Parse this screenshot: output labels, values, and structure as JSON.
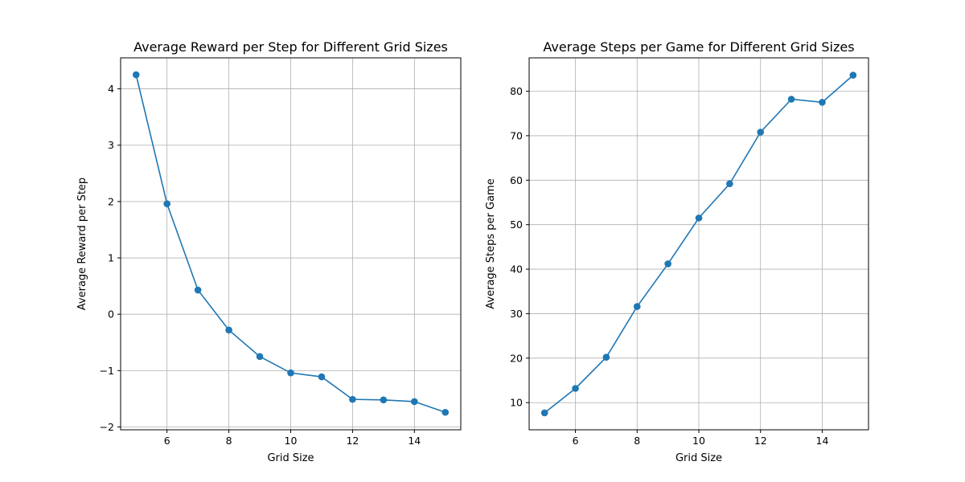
{
  "chart_data": [
    {
      "type": "line",
      "title": "Average Reward per Step for Different Grid Sizes",
      "xlabel": "Grid Size",
      "ylabel": "Average Reward per Step",
      "x": [
        5,
        6,
        7,
        8,
        9,
        10,
        11,
        12,
        13,
        14,
        15
      ],
      "series": [
        {
          "values": [
            4.25,
            1.96,
            0.43,
            -0.28,
            -0.75,
            -1.04,
            -1.11,
            -1.51,
            -1.52,
            -1.55,
            -1.74
          ]
        }
      ],
      "xlim": [
        4.5,
        15.5
      ],
      "ylim": [
        -2.05,
        4.55
      ],
      "xticks": [
        6,
        8,
        10,
        12,
        14
      ],
      "xtick_labels": [
        "6",
        "8",
        "10",
        "12",
        "14"
      ],
      "yticks": [
        -2,
        -1,
        0,
        1,
        2,
        3,
        4
      ],
      "ytick_labels": [
        "−2",
        "−1",
        "0",
        "1",
        "2",
        "3",
        "4"
      ],
      "grid": true,
      "color": "#1f77b4",
      "marker": "circle"
    },
    {
      "type": "line",
      "title": "Average Steps per Game for Different Grid Sizes",
      "xlabel": "Grid Size",
      "ylabel": "Average Steps per Game",
      "x": [
        5,
        6,
        7,
        8,
        9,
        10,
        11,
        12,
        13,
        14,
        15
      ],
      "series": [
        {
          "values": [
            7.7,
            13.2,
            20.2,
            31.6,
            41.2,
            51.5,
            59.2,
            70.8,
            78.2,
            77.5,
            83.6
          ]
        }
      ],
      "xlim": [
        4.5,
        15.5
      ],
      "ylim": [
        3.9,
        87.5
      ],
      "xticks": [
        6,
        8,
        10,
        12,
        14
      ],
      "xtick_labels": [
        "6",
        "8",
        "10",
        "12",
        "14"
      ],
      "yticks": [
        10,
        20,
        30,
        40,
        50,
        60,
        70,
        80
      ],
      "ytick_labels": [
        "10",
        "20",
        "30",
        "40",
        "50",
        "60",
        "70",
        "80"
      ],
      "grid": true,
      "color": "#1f77b4",
      "marker": "circle"
    }
  ]
}
